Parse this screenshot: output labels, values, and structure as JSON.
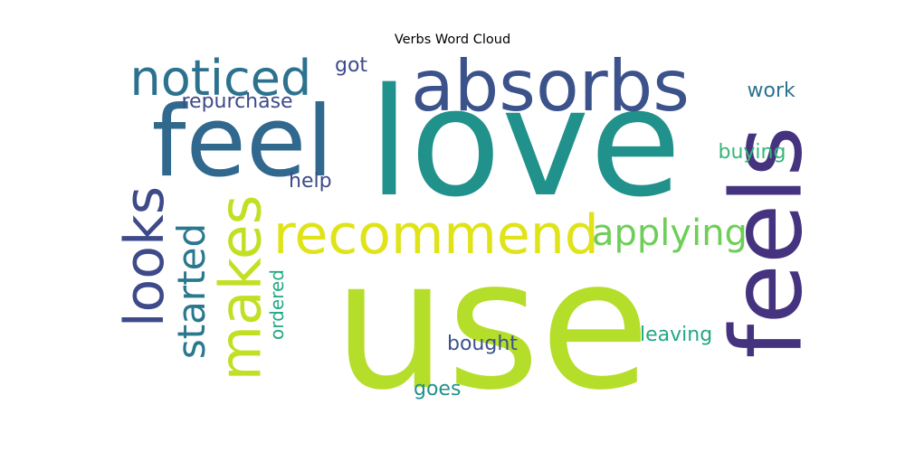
{
  "chart_data": {
    "type": "wordcloud",
    "title": "Verbs Word Cloud",
    "colormap": "viridis",
    "words": [
      {
        "text": "use",
        "weight": 1.0,
        "color": "#b5de2b",
        "orientation": "horizontal"
      },
      {
        "text": "love",
        "weight": 0.9,
        "color": "#21918c",
        "orientation": "horizontal"
      },
      {
        "text": "feel",
        "weight": 0.6,
        "color": "#31688e",
        "orientation": "horizontal"
      },
      {
        "text": "feels",
        "weight": 0.56,
        "color": "#46337f",
        "orientation": "vertical"
      },
      {
        "text": "absorbs",
        "weight": 0.42,
        "color": "#3b528b",
        "orientation": "horizontal"
      },
      {
        "text": "makes",
        "weight": 0.34,
        "color": "#c2df23",
        "orientation": "vertical"
      },
      {
        "text": "looks",
        "weight": 0.33,
        "color": "#3e4a89",
        "orientation": "vertical"
      },
      {
        "text": "recommend",
        "weight": 0.33,
        "color": "#dfe318",
        "orientation": "horizontal"
      },
      {
        "text": "noticed",
        "weight": 0.3,
        "color": "#2c728e",
        "orientation": "horizontal"
      },
      {
        "text": "started",
        "weight": 0.24,
        "color": "#2a788e",
        "orientation": "vertical"
      },
      {
        "text": "applying",
        "weight": 0.22,
        "color": "#6ece58",
        "orientation": "horizontal"
      },
      {
        "text": "repurchase",
        "weight": 0.12,
        "color": "#3e4a89",
        "orientation": "horizontal"
      },
      {
        "text": "got",
        "weight": 0.12,
        "color": "#3e4a89",
        "orientation": "horizontal"
      },
      {
        "text": "work",
        "weight": 0.12,
        "color": "#2c728e",
        "orientation": "horizontal"
      },
      {
        "text": "buying",
        "weight": 0.12,
        "color": "#35b779",
        "orientation": "horizontal"
      },
      {
        "text": "help",
        "weight": 0.12,
        "color": "#3e4a89",
        "orientation": "horizontal"
      },
      {
        "text": "ordered",
        "weight": 0.1,
        "color": "#22a884",
        "orientation": "vertical"
      },
      {
        "text": "bought",
        "weight": 0.12,
        "color": "#3b528b",
        "orientation": "horizontal"
      },
      {
        "text": "leaving",
        "weight": 0.12,
        "color": "#22a884",
        "orientation": "horizontal"
      },
      {
        "text": "goes",
        "weight": 0.12,
        "color": "#21918c",
        "orientation": "horizontal"
      }
    ]
  }
}
